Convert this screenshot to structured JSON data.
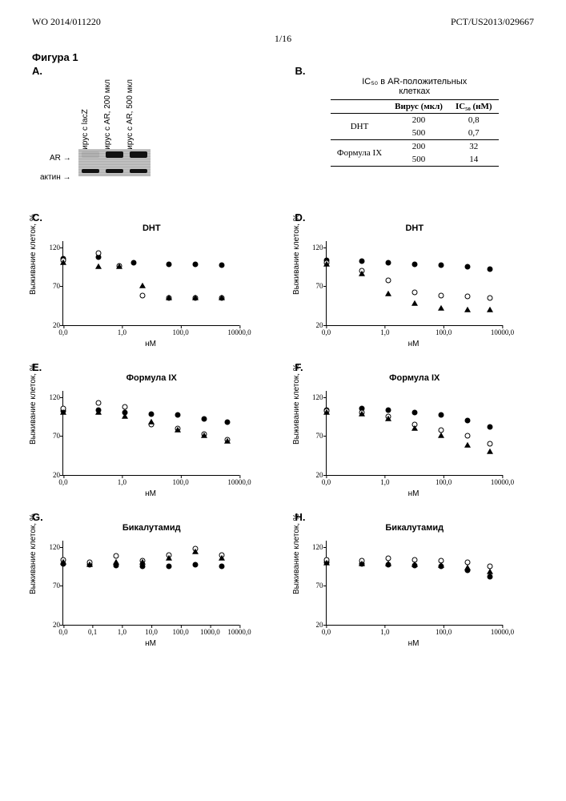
{
  "header": {
    "left": "WO 2014/011220",
    "right": "PCT/US2013/029667",
    "page": "1/16"
  },
  "figure_title": "Фигура 1",
  "panels": {
    "A": {
      "label": "A.",
      "lane_labels": [
        "вирус с lacZ",
        "вирус с AR, 200 мкл",
        "вирус с AR, 500 мкл"
      ],
      "row_labels": [
        "AR",
        "актин"
      ],
      "bands": {
        "AR": [
          false,
          true,
          true
        ],
        "актин": [
          true,
          true,
          true
        ]
      }
    },
    "B": {
      "label": "B.",
      "title1": "IC₅₀ в AR-положительных",
      "title2": "клетках",
      "headers": [
        "",
        "Вирус (мкл)",
        "IC₅₀ (нМ)"
      ],
      "rows": [
        [
          "DHT",
          "200",
          "0,8"
        ],
        [
          "",
          "500",
          "0,7"
        ],
        [
          "Формула IX",
          "200",
          "32"
        ],
        [
          "",
          "500",
          "14"
        ]
      ]
    }
  },
  "charts_common": {
    "ylabel": "Выживание клеток, %",
    "xlabel": "нМ",
    "yticks_120": [
      120,
      70,
      20
    ],
    "ylim": [
      20,
      128
    ],
    "xticks_main": [
      "0,0",
      "1,0",
      "100,0",
      "10000,0"
    ],
    "xticks_G": [
      "0,0",
      "0,1",
      "1,0",
      "10,0",
      "100,0",
      "1000,0",
      "10000,0"
    ]
  },
  "charts": {
    "C": {
      "label": "C.",
      "title": "DHT",
      "xticks": "main",
      "series": [
        {
          "marker": "filled",
          "points": [
            [
              0,
              105
            ],
            [
              0.2,
              107
            ],
            [
              0.4,
              100
            ],
            [
              0.6,
              98
            ],
            [
              0.75,
              98
            ],
            [
              0.9,
              97
            ]
          ]
        },
        {
          "marker": "open",
          "points": [
            [
              0,
              103
            ],
            [
              0.2,
              113
            ],
            [
              0.32,
              96
            ],
            [
              0.45,
              58
            ],
            [
              0.6,
              55
            ],
            [
              0.75,
              55
            ],
            [
              0.9,
              55
            ]
          ]
        },
        {
          "marker": "tri",
          "points": [
            [
              0,
              100
            ],
            [
              0.2,
              95
            ],
            [
              0.32,
              95
            ],
            [
              0.45,
              70
            ],
            [
              0.6,
              55
            ],
            [
              0.75,
              55
            ],
            [
              0.9,
              55
            ]
          ]
        }
      ]
    },
    "D": {
      "label": "D.",
      "title": "DHT",
      "xticks": "main",
      "series": [
        {
          "marker": "filled",
          "points": [
            [
              0,
              103
            ],
            [
              0.2,
              102
            ],
            [
              0.35,
              100
            ],
            [
              0.5,
              98
            ],
            [
              0.65,
              97
            ],
            [
              0.8,
              95
            ],
            [
              0.93,
              92
            ]
          ]
        },
        {
          "marker": "open",
          "points": [
            [
              0,
              100
            ],
            [
              0.2,
              90
            ],
            [
              0.35,
              78
            ],
            [
              0.5,
              62
            ],
            [
              0.65,
              58
            ],
            [
              0.8,
              57
            ],
            [
              0.93,
              55
            ]
          ]
        },
        {
          "marker": "tri",
          "points": [
            [
              0,
              98
            ],
            [
              0.2,
              86
            ],
            [
              0.35,
              60
            ],
            [
              0.5,
              48
            ],
            [
              0.65,
              42
            ],
            [
              0.8,
              40
            ],
            [
              0.93,
              40
            ]
          ]
        }
      ]
    },
    "E": {
      "label": "E.",
      "title": "Формула IX",
      "xticks": "main",
      "series": [
        {
          "marker": "filled",
          "points": [
            [
              0,
              102
            ],
            [
              0.2,
              103
            ],
            [
              0.35,
              100
            ],
            [
              0.5,
              98
            ],
            [
              0.65,
              97
            ],
            [
              0.8,
              92
            ],
            [
              0.93,
              88
            ]
          ]
        },
        {
          "marker": "open",
          "points": [
            [
              0,
              105
            ],
            [
              0.2,
              113
            ],
            [
              0.35,
              107
            ],
            [
              0.5,
              85
            ],
            [
              0.65,
              80
            ],
            [
              0.8,
              72
            ],
            [
              0.93,
              65
            ]
          ]
        },
        {
          "marker": "tri",
          "points": [
            [
              0,
              100
            ],
            [
              0.2,
              100
            ],
            [
              0.35,
              95
            ],
            [
              0.5,
              88
            ],
            [
              0.65,
              78
            ],
            [
              0.8,
              70
            ],
            [
              0.93,
              63
            ]
          ]
        }
      ]
    },
    "F": {
      "label": "F.",
      "title": "Формула IX",
      "xticks": "main",
      "series": [
        {
          "marker": "filled",
          "points": [
            [
              0,
              103
            ],
            [
              0.2,
              105
            ],
            [
              0.35,
              103
            ],
            [
              0.5,
              100
            ],
            [
              0.65,
              97
            ],
            [
              0.8,
              90
            ],
            [
              0.93,
              82
            ]
          ]
        },
        {
          "marker": "open",
          "points": [
            [
              0,
              102
            ],
            [
              0.2,
              100
            ],
            [
              0.35,
              95
            ],
            [
              0.5,
              85
            ],
            [
              0.65,
              78
            ],
            [
              0.8,
              70
            ],
            [
              0.93,
              60
            ]
          ]
        },
        {
          "marker": "tri",
          "points": [
            [
              0,
              100
            ],
            [
              0.2,
              98
            ],
            [
              0.35,
              92
            ],
            [
              0.5,
              80
            ],
            [
              0.65,
              70
            ],
            [
              0.8,
              58
            ],
            [
              0.93,
              50
            ]
          ]
        }
      ]
    },
    "G": {
      "label": "G.",
      "title": "Бикалутамид",
      "xticks": "G",
      "series": [
        {
          "marker": "filled",
          "points": [
            [
              0,
              98
            ],
            [
              0.15,
              97
            ],
            [
              0.3,
              96
            ],
            [
              0.45,
              95
            ],
            [
              0.6,
              95
            ],
            [
              0.75,
              97
            ],
            [
              0.9,
              95
            ]
          ]
        },
        {
          "marker": "open",
          "points": [
            [
              0,
              103
            ],
            [
              0.15,
              100
            ],
            [
              0.3,
              108
            ],
            [
              0.45,
              102
            ],
            [
              0.6,
              110
            ],
            [
              0.75,
              118
            ],
            [
              0.9,
              110
            ]
          ]
        },
        {
          "marker": "tri",
          "points": [
            [
              0,
              100
            ],
            [
              0.15,
              97
            ],
            [
              0.3,
              100
            ],
            [
              0.45,
              100
            ],
            [
              0.6,
              105
            ],
            [
              0.75,
              114
            ],
            [
              0.9,
              105
            ]
          ]
        }
      ]
    },
    "H": {
      "label": "H.",
      "title": "Бикалутамид",
      "xticks": "main",
      "series": [
        {
          "marker": "filled",
          "points": [
            [
              0,
              100
            ],
            [
              0.2,
              98
            ],
            [
              0.35,
              97
            ],
            [
              0.5,
              96
            ],
            [
              0.65,
              95
            ],
            [
              0.8,
              90
            ],
            [
              0.93,
              82
            ]
          ]
        },
        {
          "marker": "open",
          "points": [
            [
              0,
              103
            ],
            [
              0.2,
              102
            ],
            [
              0.35,
              105
            ],
            [
              0.5,
              103
            ],
            [
              0.65,
              102
            ],
            [
              0.8,
              100
            ],
            [
              0.93,
              95
            ]
          ]
        },
        {
          "marker": "tri",
          "points": [
            [
              0,
              99
            ],
            [
              0.2,
              98
            ],
            [
              0.35,
              98
            ],
            [
              0.5,
              97
            ],
            [
              0.65,
              96
            ],
            [
              0.8,
              93
            ],
            [
              0.93,
              88
            ]
          ]
        }
      ]
    }
  }
}
